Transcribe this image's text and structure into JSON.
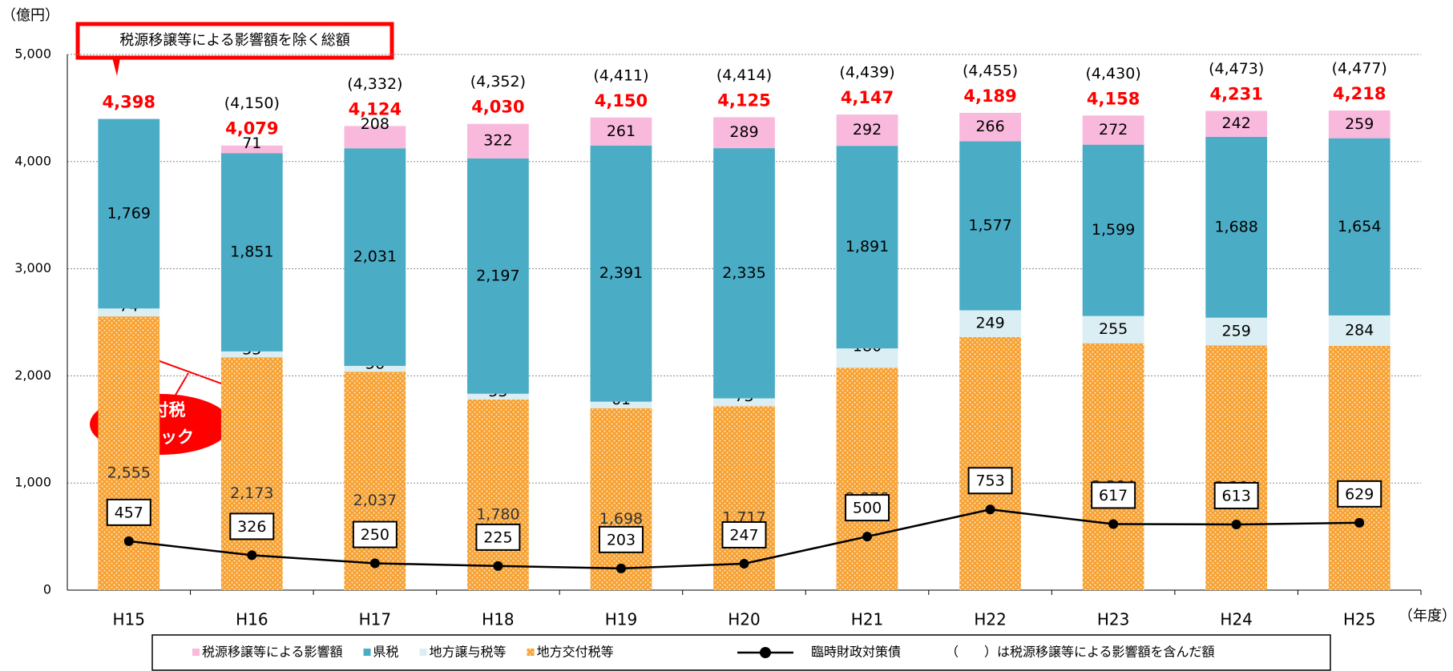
{
  "chart_data": {
    "type": "bar",
    "stacked": true,
    "ylabel": "（億円）",
    "xlabel": "（年度）",
    "annotations": [
      "税源移譲等による影響額を除く総額",
      "交付税",
      "ショック"
    ],
    "note": "（　　）は税源移譲等による影響額を含んだ額",
    "categories": [
      "H15",
      "H16",
      "H17",
      "H18",
      "H19",
      "H20",
      "H21",
      "H22",
      "H23",
      "H24",
      "H25"
    ],
    "ylim": [
      0,
      5000
    ],
    "yticks": [
      0,
      {
        "value": 1000,
        "label": "1,000"
      },
      {
        "value": 2000,
        "label": "2,000"
      },
      {
        "value": 3000,
        "label": "3,000"
      },
      {
        "value": 4000,
        "label": "4,000"
      },
      {
        "value": 5000,
        "label": "5,000"
      }
    ],
    "grid": true,
    "series": [
      {
        "name": "地方交付税等",
        "color": "#f7a030",
        "values": [
          2555,
          2173,
          2037,
          1780,
          1698,
          1717,
          2076,
          2363,
          2304,
          2284,
          2280
        ],
        "value_labels": [
          "2,555",
          "2,173",
          "2,037",
          "1,780",
          "1,698",
          "1,717",
          "2,076",
          "2,363",
          "2,304",
          "2,284",
          "2,280"
        ]
      },
      {
        "name": "地方譲与税等",
        "color": "#daeef3",
        "values": [
          74,
          55,
          56,
          53,
          61,
          73,
          180,
          249,
          255,
          259,
          284
        ]
      },
      {
        "name": "県税",
        "color": "#4bacc6",
        "values": [
          1769,
          1851,
          2031,
          2197,
          2391,
          2335,
          1891,
          1577,
          1599,
          1688,
          1654
        ],
        "value_labels": [
          "1,769",
          "1,851",
          "2,031",
          "2,197",
          "2,391",
          "2,335",
          "1,891",
          "1,577",
          "1,599",
          "1,688",
          "1,654"
        ]
      },
      {
        "name": "税源移譲等による影響額",
        "color": "#f9b9dc",
        "values": [
          null,
          71,
          208,
          322,
          261,
          289,
          292,
          266,
          272,
          242,
          259
        ]
      },
      {
        "name": "臨時財政対策債",
        "type": "line",
        "color": "#000000",
        "values": [
          457,
          326,
          250,
          225,
          203,
          247,
          500,
          753,
          617,
          613,
          629
        ]
      }
    ],
    "totals": {
      "values": [
        4398,
        4079,
        4124,
        4030,
        4150,
        4125,
        4147,
        4189,
        4158,
        4231,
        4218
      ],
      "value_labels": [
        "4,398",
        "4,079",
        "4,124",
        "4,030",
        "4,150",
        "4,125",
        "4,147",
        "4,189",
        "4,158",
        "4,231",
        "4,218"
      ]
    },
    "totals_incl": {
      "values": [
        null,
        4150,
        4332,
        4352,
        4411,
        4414,
        4439,
        4455,
        4430,
        4473,
        4477
      ],
      "value_labels": [
        null,
        "(4,150)",
        "(4,332)",
        "(4,352)",
        "(4,411)",
        "(4,414)",
        "(4,439)",
        "(4,455)",
        "(4,430)",
        "(4,473)",
        "(4,477)"
      ]
    }
  }
}
